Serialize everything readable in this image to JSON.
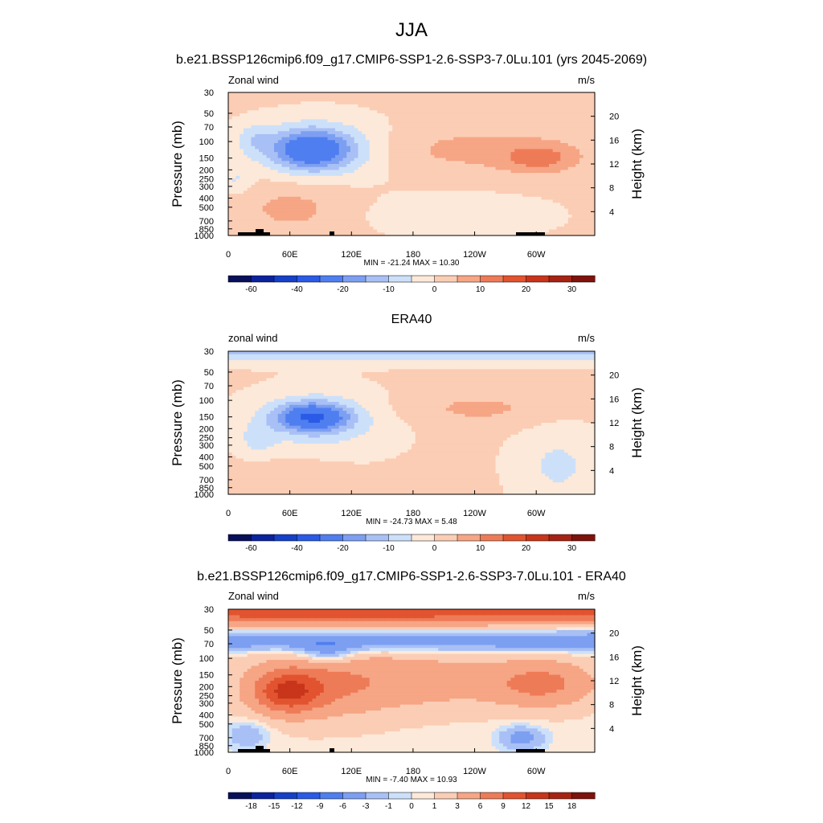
{
  "figure": {
    "title": "JJA",
    "subtitle": "b.e21.BSSP126cmip6.f09_g17.CMIP6-SSP1-2.6-SSP3-7.0Lu.101 (yrs 2045-2069)"
  },
  "chart_data": [
    {
      "type": "heatmap",
      "title": "",
      "left_label": "Zonal wind",
      "right_label": "m/s",
      "ylabel": "Pressure (mb)",
      "ylabel_right": "Height (km)",
      "x_ticks": [
        "0",
        "60E",
        "120E",
        "180",
        "120W",
        "60W"
      ],
      "x_values": [
        0,
        60,
        120,
        180,
        240,
        300
      ],
      "xlim": [
        0,
        357
      ],
      "y_ticks": [
        "30",
        "50",
        "70",
        "100",
        "150",
        "200",
        "250",
        "300",
        "400",
        "500",
        "700",
        "850",
        "1000"
      ],
      "y_values": [
        30,
        50,
        70,
        100,
        150,
        200,
        250,
        300,
        400,
        500,
        700,
        850,
        1000
      ],
      "ylim": [
        30,
        1000
      ],
      "y_scale": "log",
      "height_ticks": [
        "4",
        "8",
        "12",
        "16",
        "20"
      ],
      "height_values": [
        4,
        8,
        12,
        16,
        20
      ],
      "stats": "MIN = -21.24  MAX =  10.30",
      "colorbar": {
        "labels": [
          "-60",
          "-40",
          "-20",
          "-10",
          "0",
          "10",
          "20",
          "30"
        ],
        "levels": [
          -70,
          -60,
          -50,
          -40,
          -30,
          -20,
          -15,
          -10,
          -5,
          0,
          5,
          10,
          15,
          20,
          25,
          30,
          35
        ],
        "colors": [
          "#08105a",
          "#0b239c",
          "#1540c8",
          "#2a5ae6",
          "#4f7ef0",
          "#7d9ff2",
          "#a8c0f5",
          "#cce0fa",
          "#fde9d9",
          "#fbcdb4",
          "#f6a585",
          "#ee7b57",
          "#e2532f",
          "#c8351a",
          "#a62313",
          "#7f120c"
        ]
      },
      "features": [
        {
          "name": "easterly jet core",
          "lon": 75,
          "p": 120,
          "value": -21.24
        },
        {
          "name": "westerly maximum",
          "lon": 295,
          "p": 150,
          "value": 10.3
        }
      ],
      "grid": false
    },
    {
      "type": "heatmap",
      "title": "ERA40",
      "left_label": "zonal wind",
      "right_label": "m/s",
      "ylabel": "Pressure (mb)",
      "ylabel_right": "Height (km)",
      "x_ticks": [
        "0",
        "60E",
        "120E",
        "180",
        "120W",
        "60W"
      ],
      "x_values": [
        0,
        60,
        120,
        180,
        240,
        300
      ],
      "xlim": [
        0,
        357
      ],
      "y_ticks": [
        "30",
        "50",
        "70",
        "100",
        "150",
        "200",
        "250",
        "300",
        "400",
        "500",
        "700",
        "850",
        "1000"
      ],
      "y_values": [
        30,
        50,
        70,
        100,
        150,
        200,
        250,
        300,
        400,
        500,
        700,
        850,
        1000
      ],
      "ylim": [
        30,
        1000
      ],
      "y_scale": "log",
      "height_ticks": [
        "4",
        "8",
        "12",
        "16",
        "20"
      ],
      "height_values": [
        4,
        8,
        12,
        16,
        20
      ],
      "stats": "MIN = -24.73  MAX =   5.48",
      "colorbar": {
        "labels": [
          "-60",
          "-40",
          "-20",
          "-10",
          "0",
          "10",
          "20",
          "30"
        ],
        "levels": [
          -70,
          -60,
          -50,
          -40,
          -30,
          -20,
          -15,
          -10,
          -5,
          0,
          5,
          10,
          15,
          20,
          25,
          30,
          35
        ],
        "colors": [
          "#08105a",
          "#0b239c",
          "#1540c8",
          "#2a5ae6",
          "#4f7ef0",
          "#7d9ff2",
          "#a8c0f5",
          "#cce0fa",
          "#fde9d9",
          "#fbcdb4",
          "#f6a585",
          "#ee7b57",
          "#e2532f",
          "#c8351a",
          "#a62313",
          "#7f120c"
        ]
      },
      "features": [
        {
          "name": "easterly jet core",
          "lon": 75,
          "p": 150,
          "value": -24.73
        },
        {
          "name": "westerly maximum",
          "lon": 240,
          "p": 120,
          "value": 5.48
        }
      ],
      "grid": false
    },
    {
      "type": "heatmap",
      "title": "b.e21.BSSP126cmip6.f09_g17.CMIP6-SSP1-2.6-SSP3-7.0Lu.101 - ERA40",
      "left_label": "Zonal wind",
      "right_label": "m/s",
      "ylabel": "Pressure (mb)",
      "ylabel_right": "Height (km)",
      "x_ticks": [
        "0",
        "60E",
        "120E",
        "180",
        "120W",
        "60W"
      ],
      "x_values": [
        0,
        60,
        120,
        180,
        240,
        300
      ],
      "xlim": [
        0,
        357
      ],
      "y_ticks": [
        "30",
        "50",
        "70",
        "100",
        "150",
        "200",
        "250",
        "300",
        "400",
        "500",
        "700",
        "850",
        "1000"
      ],
      "y_values": [
        30,
        50,
        70,
        100,
        150,
        200,
        250,
        300,
        400,
        500,
        700,
        850,
        1000
      ],
      "ylim": [
        30,
        1000
      ],
      "y_scale": "log",
      "height_ticks": [
        "4",
        "8",
        "12",
        "16",
        "20"
      ],
      "height_values": [
        4,
        8,
        12,
        16,
        20
      ],
      "stats": "MIN =  -7.40  MAX =  10.93",
      "colorbar": {
        "labels": [
          "-18",
          "-15",
          "-12",
          "-9",
          "-6",
          "-3",
          "-1",
          "0",
          "1",
          "3",
          "6",
          "9",
          "12",
          "15",
          "18"
        ],
        "levels": [
          -21,
          -18,
          -15,
          -12,
          -9,
          -6,
          -3,
          -1,
          0,
          1,
          3,
          6,
          9,
          12,
          15,
          18,
          21
        ],
        "colors": [
          "#08105a",
          "#0b239c",
          "#1540c8",
          "#2a5ae6",
          "#4f7ef0",
          "#7d9ff2",
          "#a8c0f5",
          "#cce0fa",
          "#fde9d9",
          "#fbcdb4",
          "#f6a585",
          "#ee7b57",
          "#e2532f",
          "#c8351a",
          "#a62313",
          "#7f120c"
        ]
      },
      "features": [
        {
          "name": "upper stratosphere westerly anomaly",
          "lon": 180,
          "p": 35,
          "value": 10.93
        },
        {
          "name": "easterly anomaly",
          "lon": 95,
          "p": 90,
          "value": -7.4
        },
        {
          "name": "westerly anomaly",
          "lon": 65,
          "p": 230,
          "value": 9
        }
      ],
      "grid": false
    }
  ]
}
